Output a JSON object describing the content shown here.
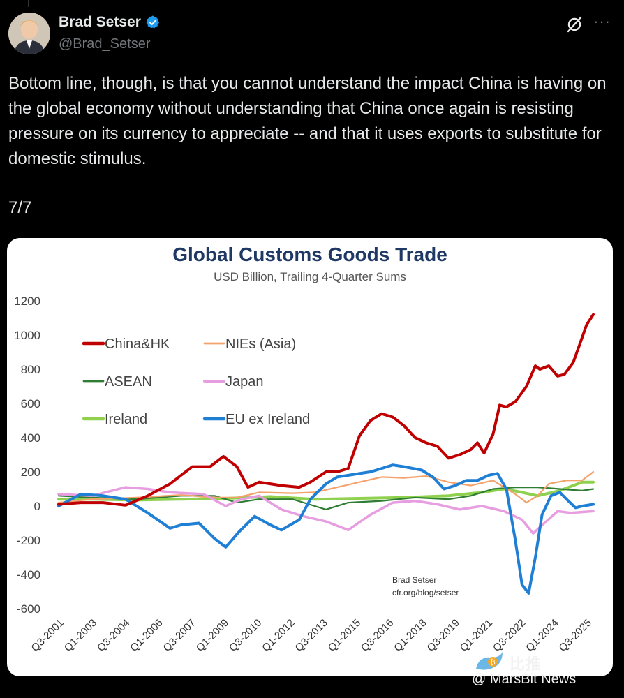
{
  "tweet": {
    "author_name": "Brad Setser",
    "author_handle": "@Brad_Setser",
    "text": "Bottom line, though, is that you cannot understand the impact China is having on the global economy without understanding that China once again is resisting pressure on its currency to appreciate -- and that it uses exports to substitute for domestic stimulus.",
    "page_indicator": "7/7",
    "more_label": "···"
  },
  "watermark": {
    "brand_cn": "比推",
    "brand_en": "@ MarsBit News"
  },
  "colors": {
    "title": "#1f3864",
    "China&HK": "#c00000",
    "NIEs (Asia)": "#f4a26c",
    "ASEAN": "#2e7d32",
    "Japan": "#e79ee0",
    "Ireland": "#8fd14f",
    "EU ex Ireland": "#1f7fd4"
  },
  "chart_data": {
    "type": "line",
    "title": "Global Customs Goods Trade",
    "subtitle": "USD Billion, Trailing 4-Quarter Sums",
    "ylim": [
      -600,
      1200
    ],
    "yticks": [
      1200,
      1000,
      800,
      600,
      400,
      200,
      0,
      -200,
      -400,
      -600
    ],
    "x_tick_labels": [
      "Q3-2001",
      "Q1-2003",
      "Q3-2004",
      "Q1-2006",
      "Q3-2007",
      "Q1-2009",
      "Q3-2010",
      "Q1-2012",
      "Q3-2013",
      "Q1-2015",
      "Q3-2016",
      "Q1-2018",
      "Q3-2019",
      "Q1-2021",
      "Q3-2022",
      "Q1-2024",
      "Q3-2025"
    ],
    "x_start": 2001.5,
    "x_end": 2025.5,
    "legend_position": "top-left",
    "annotation": [
      "Brad Setser",
      "cfr.org/blog/setser"
    ],
    "series": [
      {
        "name": "China&HK",
        "points": [
          [
            2001.5,
            10
          ],
          [
            2002.5,
            20
          ],
          [
            2003.5,
            20
          ],
          [
            2004.5,
            5
          ],
          [
            2005.5,
            60
          ],
          [
            2006.5,
            130
          ],
          [
            2007.5,
            230
          ],
          [
            2008.3,
            230
          ],
          [
            2008.9,
            290
          ],
          [
            2009.5,
            230
          ],
          [
            2010.0,
            110
          ],
          [
            2010.5,
            140
          ],
          [
            2011.5,
            120
          ],
          [
            2012.3,
            110
          ],
          [
            2012.8,
            140
          ],
          [
            2013.5,
            200
          ],
          [
            2014.0,
            200
          ],
          [
            2014.5,
            220
          ],
          [
            2015.0,
            410
          ],
          [
            2015.5,
            500
          ],
          [
            2016.0,
            540
          ],
          [
            2016.5,
            520
          ],
          [
            2017.0,
            470
          ],
          [
            2017.5,
            400
          ],
          [
            2018.0,
            370
          ],
          [
            2018.5,
            350
          ],
          [
            2019.0,
            280
          ],
          [
            2019.5,
            300
          ],
          [
            2020.0,
            330
          ],
          [
            2020.3,
            370
          ],
          [
            2020.6,
            310
          ],
          [
            2021.0,
            420
          ],
          [
            2021.3,
            590
          ],
          [
            2021.6,
            580
          ],
          [
            2022.0,
            610
          ],
          [
            2022.5,
            700
          ],
          [
            2022.9,
            820
          ],
          [
            2023.1,
            800
          ],
          [
            2023.5,
            820
          ],
          [
            2023.9,
            760
          ],
          [
            2024.2,
            770
          ],
          [
            2024.6,
            840
          ],
          [
            2024.9,
            950
          ],
          [
            2025.2,
            1060
          ],
          [
            2025.5,
            1120
          ]
        ]
      },
      {
        "name": "NIEs (Asia)",
        "points": [
          [
            2001.5,
            20
          ],
          [
            2003.0,
            40
          ],
          [
            2005.0,
            50
          ],
          [
            2007.0,
            65
          ],
          [
            2008.5,
            50
          ],
          [
            2009.5,
            50
          ],
          [
            2010.5,
            80
          ],
          [
            2012.0,
            75
          ],
          [
            2013.0,
            80
          ],
          [
            2014.0,
            110
          ],
          [
            2015.0,
            140
          ],
          [
            2016.0,
            170
          ],
          [
            2017.0,
            165
          ],
          [
            2018.0,
            175
          ],
          [
            2019.0,
            140
          ],
          [
            2020.0,
            120
          ],
          [
            2021.0,
            150
          ],
          [
            2022.0,
            70
          ],
          [
            2022.5,
            20
          ],
          [
            2023.0,
            60
          ],
          [
            2023.5,
            130
          ],
          [
            2024.3,
            150
          ],
          [
            2025.0,
            150
          ],
          [
            2025.5,
            200
          ]
        ]
      },
      {
        "name": "ASEAN",
        "points": [
          [
            2001.5,
            60
          ],
          [
            2003.0,
            50
          ],
          [
            2005.0,
            40
          ],
          [
            2007.0,
            60
          ],
          [
            2008.5,
            60
          ],
          [
            2009.5,
            20
          ],
          [
            2010.5,
            40
          ],
          [
            2012.0,
            40
          ],
          [
            2013.0,
            0
          ],
          [
            2013.5,
            -20
          ],
          [
            2014.5,
            20
          ],
          [
            2016.0,
            30
          ],
          [
            2017.5,
            50
          ],
          [
            2019.0,
            40
          ],
          [
            2020.0,
            60
          ],
          [
            2021.0,
            100
          ],
          [
            2022.0,
            110
          ],
          [
            2023.0,
            110
          ],
          [
            2024.0,
            100
          ],
          [
            2025.0,
            90
          ],
          [
            2025.5,
            100
          ]
        ]
      },
      {
        "name": "Japan",
        "points": [
          [
            2001.5,
            70
          ],
          [
            2003.0,
            60
          ],
          [
            2004.5,
            110
          ],
          [
            2005.5,
            100
          ],
          [
            2006.5,
            80
          ],
          [
            2008.0,
            70
          ],
          [
            2009.0,
            0
          ],
          [
            2009.7,
            40
          ],
          [
            2010.5,
            60
          ],
          [
            2011.5,
            -20
          ],
          [
            2012.5,
            -60
          ],
          [
            2013.5,
            -90
          ],
          [
            2014.5,
            -140
          ],
          [
            2015.5,
            -50
          ],
          [
            2016.5,
            20
          ],
          [
            2017.5,
            30
          ],
          [
            2018.5,
            10
          ],
          [
            2019.5,
            -20
          ],
          [
            2020.5,
            0
          ],
          [
            2021.5,
            -30
          ],
          [
            2022.3,
            -80
          ],
          [
            2022.8,
            -160
          ],
          [
            2023.3,
            -100
          ],
          [
            2023.9,
            -30
          ],
          [
            2024.5,
            -40
          ],
          [
            2025.5,
            -30
          ]
        ]
      },
      {
        "name": "Ireland",
        "points": [
          [
            2001.5,
            40
          ],
          [
            2003.0,
            40
          ],
          [
            2005.0,
            35
          ],
          [
            2007.0,
            40
          ],
          [
            2009.0,
            45
          ],
          [
            2011.0,
            55
          ],
          [
            2013.0,
            40
          ],
          [
            2015.0,
            45
          ],
          [
            2017.0,
            50
          ],
          [
            2019.0,
            60
          ],
          [
            2020.5,
            80
          ],
          [
            2021.5,
            100
          ],
          [
            2022.3,
            80
          ],
          [
            2023.0,
            60
          ],
          [
            2024.0,
            90
          ],
          [
            2025.0,
            140
          ],
          [
            2025.5,
            140
          ]
        ]
      },
      {
        "name": "EU ex Ireland",
        "points": [
          [
            2001.5,
            0
          ],
          [
            2002.5,
            70
          ],
          [
            2003.5,
            60
          ],
          [
            2004.5,
            40
          ],
          [
            2005.5,
            -40
          ],
          [
            2006.5,
            -130
          ],
          [
            2007.0,
            -110
          ],
          [
            2007.8,
            -100
          ],
          [
            2008.5,
            -190
          ],
          [
            2009.0,
            -240
          ],
          [
            2009.6,
            -150
          ],
          [
            2010.3,
            -60
          ],
          [
            2011.0,
            -110
          ],
          [
            2011.5,
            -140
          ],
          [
            2012.3,
            -80
          ],
          [
            2012.8,
            40
          ],
          [
            2013.5,
            130
          ],
          [
            2014.0,
            170
          ],
          [
            2015.0,
            190
          ],
          [
            2015.5,
            200
          ],
          [
            2016.0,
            220
          ],
          [
            2016.5,
            240
          ],
          [
            2017.0,
            230
          ],
          [
            2017.8,
            210
          ],
          [
            2018.3,
            170
          ],
          [
            2018.8,
            100
          ],
          [
            2019.3,
            120
          ],
          [
            2019.8,
            150
          ],
          [
            2020.3,
            150
          ],
          [
            2020.8,
            180
          ],
          [
            2021.2,
            190
          ],
          [
            2021.6,
            100
          ],
          [
            2022.0,
            -200
          ],
          [
            2022.3,
            -460
          ],
          [
            2022.6,
            -510
          ],
          [
            2022.9,
            -300
          ],
          [
            2023.2,
            -50
          ],
          [
            2023.6,
            60
          ],
          [
            2024.0,
            80
          ],
          [
            2024.3,
            40
          ],
          [
            2024.7,
            -10
          ],
          [
            2025.0,
            0
          ],
          [
            2025.5,
            10
          ]
        ]
      }
    ]
  }
}
